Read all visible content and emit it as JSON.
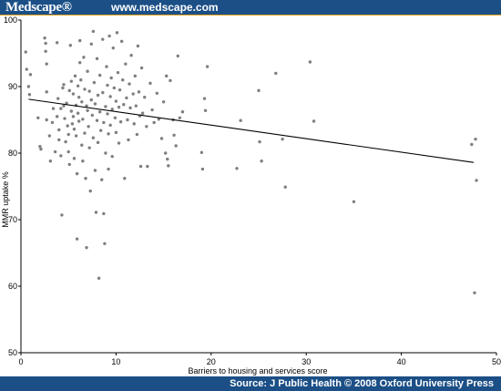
{
  "header": {
    "logo_text": "Medscape®",
    "site_url": "www.medscape.com",
    "bar_color": "#1b4f86",
    "rule_color": "#f0a01c"
  },
  "footer": {
    "source_text": "Source: J Public Health © 2008 Oxford University Press"
  },
  "chart_data": {
    "type": "scatter",
    "xlabel": "Barriers to housing and services score",
    "ylabel": "MMR uptake %",
    "xlim": [
      0,
      50
    ],
    "ylim": [
      50,
      100
    ],
    "xticks": [
      0,
      10,
      20,
      30,
      40,
      50
    ],
    "yticks": [
      50,
      60,
      70,
      80,
      90,
      100
    ],
    "grid": false,
    "point_color": "#7f7f7f",
    "line_color": "#000000",
    "trendline": {
      "x": [
        0.8,
        47.6
      ],
      "y": [
        88.1,
        78.6
      ]
    },
    "points": [
      [
        0.5,
        95.2
      ],
      [
        0.6,
        92.6
      ],
      [
        0.8,
        90.0
      ],
      [
        0.9,
        88.8
      ],
      [
        1.0,
        91.8
      ],
      [
        1.8,
        85.3
      ],
      [
        2.0,
        81.0
      ],
      [
        2.1,
        80.6
      ],
      [
        2.5,
        97.3
      ],
      [
        2.6,
        96.5
      ],
      [
        2.6,
        95.3
      ],
      [
        2.7,
        93.4
      ],
      [
        2.7,
        89.2
      ],
      [
        2.7,
        85.0
      ],
      [
        3.0,
        82.6
      ],
      [
        3.1,
        78.8
      ],
      [
        3.3,
        84.6
      ],
      [
        3.4,
        86.7
      ],
      [
        3.6,
        80.2
      ],
      [
        3.8,
        96.6
      ],
      [
        3.8,
        85.5
      ],
      [
        3.9,
        88.2
      ],
      [
        4.0,
        83.5
      ],
      [
        4.0,
        82.0
      ],
      [
        4.2,
        86.7
      ],
      [
        4.2,
        79.6
      ],
      [
        4.3,
        70.7
      ],
      [
        4.4,
        89.8
      ],
      [
        4.5,
        90.3
      ],
      [
        4.5,
        87.1
      ],
      [
        4.6,
        85.2
      ],
      [
        4.7,
        81.7
      ],
      [
        4.8,
        87.5
      ],
      [
        4.9,
        84.1
      ],
      [
        5.0,
        82.8
      ],
      [
        5.0,
        80.2
      ],
      [
        5.1,
        89.4
      ],
      [
        5.1,
        78.3
      ],
      [
        5.2,
        96.2
      ],
      [
        5.3,
        90.8
      ],
      [
        5.3,
        86.3
      ],
      [
        5.4,
        84.4
      ],
      [
        5.5,
        88.9
      ],
      [
        5.5,
        85.5
      ],
      [
        5.6,
        83.6
      ],
      [
        5.6,
        79.2
      ],
      [
        5.7,
        91.6
      ],
      [
        5.8,
        87.2
      ],
      [
        5.8,
        82.6
      ],
      [
        5.9,
        76.9
      ],
      [
        5.9,
        67.1
      ],
      [
        6.0,
        90.1
      ],
      [
        6.0,
        86.0
      ],
      [
        6.1,
        88.4
      ],
      [
        6.1,
        84.8
      ],
      [
        6.2,
        96.9
      ],
      [
        6.2,
        93.6
      ],
      [
        6.3,
        91.0
      ],
      [
        6.4,
        87.7
      ],
      [
        6.4,
        81.2
      ],
      [
        6.5,
        85.1
      ],
      [
        6.5,
        78.8
      ],
      [
        6.6,
        94.4
      ],
      [
        6.7,
        89.6
      ],
      [
        6.7,
        83.0
      ],
      [
        6.8,
        76.2
      ],
      [
        6.9,
        87.1
      ],
      [
        6.9,
        65.8
      ],
      [
        7.0,
        92.3
      ],
      [
        7.0,
        86.4
      ],
      [
        7.1,
        84.0
      ],
      [
        7.2,
        89.3
      ],
      [
        7.2,
        80.8
      ],
      [
        7.3,
        74.3
      ],
      [
        7.4,
        96.4
      ],
      [
        7.4,
        88.0
      ],
      [
        7.5,
        85.7
      ],
      [
        7.6,
        82.3
      ],
      [
        7.6,
        98.3
      ],
      [
        7.7,
        90.6
      ],
      [
        7.8,
        87.4
      ],
      [
        7.8,
        77.4
      ],
      [
        7.9,
        71.1
      ],
      [
        8.0,
        94.2
      ],
      [
        8.0,
        84.9
      ],
      [
        8.1,
        88.7
      ],
      [
        8.1,
        81.6
      ],
      [
        8.2,
        61.2
      ],
      [
        8.3,
        91.7
      ],
      [
        8.3,
        86.2
      ],
      [
        8.4,
        83.4
      ],
      [
        8.5,
        76.0
      ],
      [
        8.6,
        97.1
      ],
      [
        8.6,
        89.1
      ],
      [
        8.7,
        84.6
      ],
      [
        8.7,
        70.9
      ],
      [
        8.8,
        66.4
      ],
      [
        8.9,
        87.0
      ],
      [
        8.9,
        80.0
      ],
      [
        9.0,
        93.0
      ],
      [
        9.1,
        90.2
      ],
      [
        9.1,
        85.9
      ],
      [
        9.2,
        82.9
      ],
      [
        9.2,
        77.6
      ],
      [
        9.3,
        97.6
      ],
      [
        9.4,
        88.5
      ],
      [
        9.4,
        84.2
      ],
      [
        9.5,
        91.3
      ],
      [
        9.6,
        86.6
      ],
      [
        9.6,
        79.5
      ],
      [
        9.7,
        95.8
      ],
      [
        9.8,
        89.8
      ],
      [
        9.9,
        85.3
      ],
      [
        10.0,
        87.8
      ],
      [
        10.0,
        83.1
      ],
      [
        10.1,
        98.1
      ],
      [
        10.2,
        92.1
      ],
      [
        10.3,
        86.9
      ],
      [
        10.3,
        81.5
      ],
      [
        10.4,
        89.5
      ],
      [
        10.5,
        84.7
      ],
      [
        10.6,
        96.8
      ],
      [
        10.7,
        91.0
      ],
      [
        10.8,
        87.3
      ],
      [
        10.9,
        76.2
      ],
      [
        11.0,
        93.4
      ],
      [
        11.1,
        88.3
      ],
      [
        11.2,
        85.0
      ],
      [
        11.3,
        82.0
      ],
      [
        11.4,
        90.4
      ],
      [
        11.5,
        86.8
      ],
      [
        11.6,
        94.7
      ],
      [
        11.8,
        88.9
      ],
      [
        11.9,
        84.4
      ],
      [
        12.0,
        91.6
      ],
      [
        12.1,
        87.1
      ],
      [
        12.2,
        82.8
      ],
      [
        12.3,
        96.1
      ],
      [
        12.4,
        89.2
      ],
      [
        12.5,
        85.6
      ],
      [
        12.6,
        78.0
      ],
      [
        12.7,
        92.8
      ],
      [
        12.8,
        86.0
      ],
      [
        13.0,
        88.4
      ],
      [
        13.2,
        84.0
      ],
      [
        13.3,
        78.0
      ],
      [
        13.6,
        90.5
      ],
      [
        13.8,
        86.5
      ],
      [
        14.0,
        84.6
      ],
      [
        14.3,
        89.0
      ],
      [
        14.5,
        85.1
      ],
      [
        14.8,
        82.2
      ],
      [
        15.0,
        87.7
      ],
      [
        15.2,
        80.0
      ],
      [
        15.3,
        91.6
      ],
      [
        15.4,
        79.1
      ],
      [
        15.5,
        78.1
      ],
      [
        15.7,
        90.9
      ],
      [
        16.0,
        85.0
      ],
      [
        16.1,
        82.7
      ],
      [
        16.3,
        81.1
      ],
      [
        16.5,
        94.6
      ],
      [
        16.7,
        85.3
      ],
      [
        17.0,
        86.2
      ],
      [
        19.0,
        80.1
      ],
      [
        19.1,
        77.6
      ],
      [
        19.3,
        88.2
      ],
      [
        19.4,
        86.4
      ],
      [
        19.6,
        93.0
      ],
      [
        22.7,
        77.7
      ],
      [
        23.1,
        84.9
      ],
      [
        25.0,
        89.4
      ],
      [
        25.1,
        81.7
      ],
      [
        25.3,
        78.8
      ],
      [
        26.8,
        92.0
      ],
      [
        27.5,
        82.1
      ],
      [
        27.8,
        74.9
      ],
      [
        30.4,
        93.7
      ],
      [
        30.8,
        84.8
      ],
      [
        35.0,
        72.7
      ],
      [
        47.4,
        81.3
      ],
      [
        47.7,
        59.0
      ],
      [
        47.8,
        82.1
      ],
      [
        47.9,
        75.9
      ]
    ]
  }
}
